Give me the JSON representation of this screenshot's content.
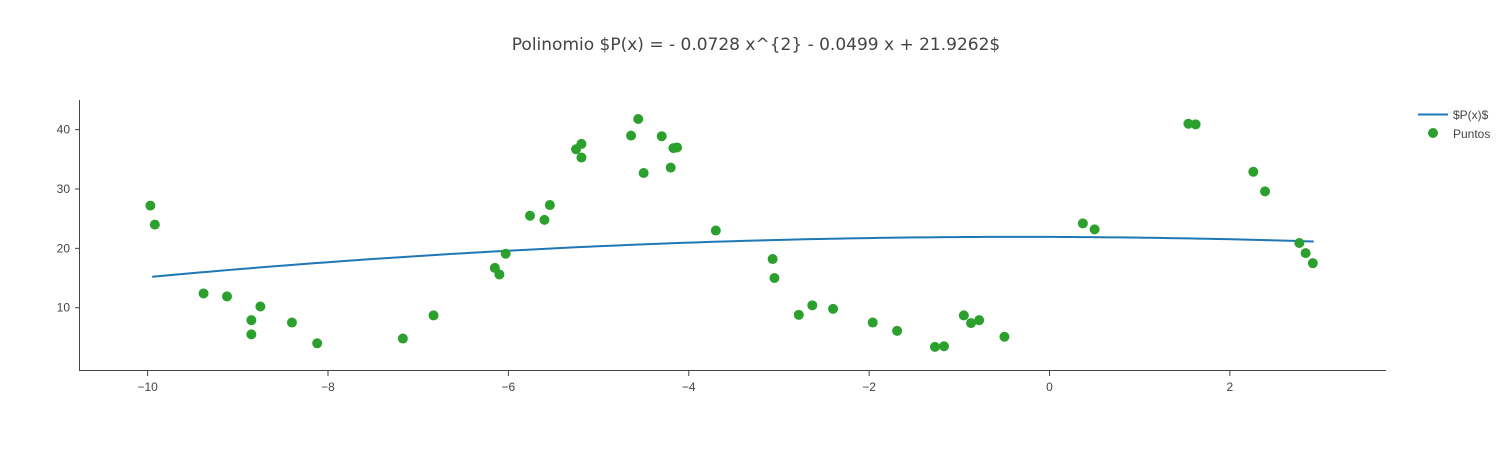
{
  "chart_data": {
    "type": "scatter",
    "title": "Polinomio $P(x) = - 0.0728 x^{2} - 0.0499 x + 21.9262$",
    "xlabel": "",
    "ylabel": "",
    "xlim": [
      -10.75,
      3.72
    ],
    "ylim": [
      -0.5,
      45
    ],
    "x_ticks": [
      -10,
      -8,
      -6,
      -4,
      -2,
      0,
      2
    ],
    "x_tick_labels": [
      "−10",
      "−8",
      "−6",
      "−4",
      "−2",
      "0",
      "2"
    ],
    "y_ticks": [
      10,
      20,
      30,
      40
    ],
    "y_tick_labels": [
      "10",
      "20",
      "30",
      "40"
    ],
    "grid": false,
    "legend_position": "top-right",
    "polynomial": {
      "a": -0.0728,
      "b": -0.0499,
      "c": 21.9262,
      "x_range": [
        -9.95,
        2.93
      ]
    },
    "series": [
      {
        "name": "$P(x)$",
        "kind": "line",
        "color": "#1f77b4",
        "points": [
          [
            -9.95,
            15.21
          ],
          [
            -9.0,
            16.48
          ],
          [
            -8.0,
            17.67
          ],
          [
            -7.0,
            18.71
          ],
          [
            -6.0,
            19.61
          ],
          [
            -5.0,
            20.36
          ],
          [
            -4.0,
            20.96
          ],
          [
            -3.0,
            21.42
          ],
          [
            -2.0,
            21.73
          ],
          [
            -1.0,
            21.9
          ],
          [
            0.0,
            21.93
          ],
          [
            1.0,
            21.8
          ],
          [
            2.0,
            21.54
          ],
          [
            2.93,
            21.15
          ]
        ]
      },
      {
        "name": "Puntos",
        "kind": "markers",
        "color": "#2ca02c",
        "points": [
          [
            -9.97,
            27.2
          ],
          [
            -9.92,
            24.0
          ],
          [
            -9.38,
            12.4
          ],
          [
            -9.12,
            11.9
          ],
          [
            -8.85,
            7.9
          ],
          [
            -8.85,
            5.5
          ],
          [
            -8.75,
            10.2
          ],
          [
            -8.4,
            7.5
          ],
          [
            -8.12,
            4.0
          ],
          [
            -7.17,
            4.8
          ],
          [
            -6.83,
            8.7
          ],
          [
            -6.15,
            16.7
          ],
          [
            -6.1,
            15.6
          ],
          [
            -6.03,
            19.1
          ],
          [
            -5.76,
            25.5
          ],
          [
            -5.6,
            24.8
          ],
          [
            -5.54,
            27.3
          ],
          [
            -5.25,
            36.7
          ],
          [
            -5.19,
            37.6
          ],
          [
            -5.19,
            35.3
          ],
          [
            -4.64,
            39.0
          ],
          [
            -4.56,
            41.8
          ],
          [
            -4.5,
            32.7
          ],
          [
            -4.3,
            38.9
          ],
          [
            -4.2,
            33.6
          ],
          [
            -4.17,
            36.9
          ],
          [
            -4.13,
            37.0
          ],
          [
            -3.7,
            23.0
          ],
          [
            -3.07,
            18.2
          ],
          [
            -3.05,
            15.0
          ],
          [
            -2.78,
            8.8
          ],
          [
            -2.63,
            10.4
          ],
          [
            -2.4,
            9.8
          ],
          [
            -1.96,
            7.5
          ],
          [
            -1.69,
            6.1
          ],
          [
            -1.27,
            3.4
          ],
          [
            -1.17,
            3.5
          ],
          [
            -0.95,
            8.7
          ],
          [
            -0.87,
            7.4
          ],
          [
            -0.78,
            7.9
          ],
          [
            -0.5,
            5.1
          ],
          [
            0.37,
            24.2
          ],
          [
            0.5,
            23.2
          ],
          [
            1.54,
            41.0
          ],
          [
            1.62,
            40.9
          ],
          [
            2.26,
            32.9
          ],
          [
            2.39,
            29.6
          ],
          [
            2.77,
            20.9
          ],
          [
            2.84,
            19.2
          ],
          [
            2.92,
            17.5
          ]
        ]
      }
    ]
  }
}
